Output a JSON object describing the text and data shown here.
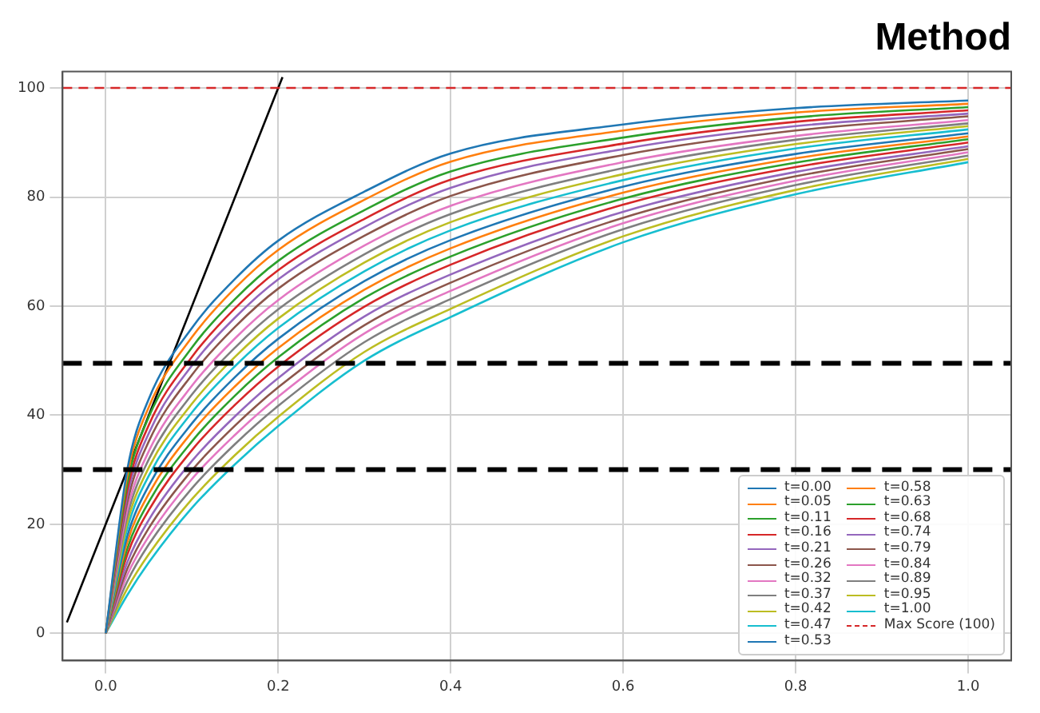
{
  "chart_data": {
    "type": "line",
    "title": "Method",
    "x": [
      0,
      0.025,
      0.05,
      0.1,
      0.15,
      0.2,
      0.3,
      0.4,
      0.6,
      0.8,
      1.0
    ],
    "xlim": [
      -0.05,
      1.05
    ],
    "xticks": [
      {
        "value": 0,
        "label": "0.0"
      },
      0.2,
      0.4,
      0.6,
      0.8,
      {
        "value": 1,
        "label": "1.0"
      }
    ],
    "ylim": [
      -5,
      103
    ],
    "yticks": [
      0,
      20,
      40,
      60,
      80,
      100
    ],
    "grid": true,
    "legend": "bottom right",
    "marker": "none",
    "line_style": "solid",
    "series": [
      {
        "name": "t=0.00",
        "color": "#1f77b4",
        "values": [
          0,
          30,
          43,
          56,
          65,
          72,
          81,
          88,
          93.3,
          96.3,
          97.7
        ]
      },
      {
        "name": "t=0.05",
        "color": "#ff7f0e",
        "values": [
          0,
          28.9,
          41.5,
          54.3,
          63.3,
          70.3,
          79.5,
          86.5,
          92.2,
          95.5,
          97.1
        ]
      },
      {
        "name": "t=0.11",
        "color": "#2ca02c",
        "values": [
          0,
          27.5,
          39.7,
          52.4,
          61.3,
          68.3,
          77.6,
          84.7,
          90.9,
          94.6,
          96.5
        ]
      },
      {
        "name": "t=0.16",
        "color": "#d62728",
        "values": [
          0,
          26.3,
          38.2,
          50.7,
          59.6,
          66.6,
          76.0,
          83.2,
          89.8,
          93.8,
          95.9
        ]
      },
      {
        "name": "t=0.21",
        "color": "#9467bd",
        "values": [
          0,
          25.2,
          36.7,
          49.1,
          57.9,
          64.9,
          74.5,
          81.7,
          88.8,
          93.0,
          95.3
        ]
      },
      {
        "name": "t=0.26",
        "color": "#8c564b",
        "values": [
          0,
          24.0,
          35.2,
          47.4,
          56.2,
          63.2,
          72.9,
          80.2,
          87.7,
          92.2,
          94.8
        ]
      },
      {
        "name": "t=0.32",
        "color": "#e377c2",
        "values": [
          0,
          22.6,
          33.4,
          45.4,
          54.1,
          61.1,
          71.1,
          78.4,
          86.4,
          91.2,
          94.1
        ]
      },
      {
        "name": "t=0.37",
        "color": "#7f7f7f",
        "values": [
          0,
          21.5,
          31.9,
          43.8,
          52.4,
          59.4,
          69.5,
          76.9,
          85.3,
          90.5,
          93.5
        ]
      },
      {
        "name": "t=0.42",
        "color": "#bcbd22",
        "values": [
          0,
          20.3,
          30.4,
          42.1,
          50.7,
          57.7,
          68.0,
          75.4,
          84.2,
          89.7,
          93.0
        ]
      },
      {
        "name": "t=0.47",
        "color": "#17becf",
        "values": [
          0,
          19.2,
          28.9,
          40.5,
          49.0,
          56.0,
          66.4,
          73.9,
          83.1,
          88.9,
          92.4
        ]
      },
      {
        "name": "t=0.53",
        "color": "#1f77b4",
        "values": [
          0,
          17.8,
          27.1,
          38.5,
          47.0,
          54.0,
          64.6,
          72.1,
          81.9,
          87.9,
          91.7
        ]
      },
      {
        "name": "t=0.58",
        "color": "#ff7f0e",
        "values": [
          0,
          16.7,
          25.6,
          36.9,
          45.3,
          52.3,
          63.0,
          70.6,
          80.8,
          87.1,
          91.1
        ]
      },
      {
        "name": "t=0.63",
        "color": "#2ca02c",
        "values": [
          0,
          15.5,
          24.1,
          35.2,
          43.6,
          50.6,
          61.5,
          69.1,
          79.7,
          86.3,
          90.6
        ]
      },
      {
        "name": "t=0.68",
        "color": "#d62728",
        "values": [
          0,
          14.4,
          22.6,
          33.6,
          41.9,
          48.9,
          59.9,
          67.6,
          78.6,
          85.5,
          90.0
        ]
      },
      {
        "name": "t=0.74",
        "color": "#9467bd",
        "values": [
          0,
          13.0,
          20.8,
          31.6,
          39.8,
          46.8,
          58.1,
          65.8,
          77.3,
          84.6,
          89.3
        ]
      },
      {
        "name": "t=0.79",
        "color": "#8c564b",
        "values": [
          0,
          11.8,
          19.3,
          29.9,
          38.1,
          45.1,
          56.5,
          64.3,
          76.2,
          83.8,
          88.8
        ]
      },
      {
        "name": "t=0.84",
        "color": "#e377c2",
        "values": [
          0,
          10.7,
          17.8,
          28.3,
          36.4,
          43.4,
          55.0,
          62.8,
          75.2,
          83.0,
          88.2
        ]
      },
      {
        "name": "t=0.89",
        "color": "#7f7f7f",
        "values": [
          0,
          9.5,
          16.3,
          26.6,
          34.7,
          41.7,
          53.4,
          61.3,
          74.1,
          82.2,
          87.6
        ]
      },
      {
        "name": "t=0.95",
        "color": "#bcbd22",
        "values": [
          0,
          8.2,
          14.5,
          24.6,
          32.7,
          39.7,
          51.6,
          59.5,
          72.8,
          81.3,
          87.0
        ]
      },
      {
        "name": "t=1.00",
        "color": "#17becf",
        "values": [
          0,
          7,
          13,
          23,
          31,
          38,
          50,
          58,
          71.7,
          80.5,
          86.4
        ]
      },
      {
        "name": "Max Score (100)",
        "color": "#d62728",
        "line_style": "dashed",
        "x": [
          -0.05,
          1.05
        ],
        "values": [
          100,
          100
        ]
      },
      {
        "color": "#000000",
        "x": [
          -0.045,
          0.205
        ],
        "values": [
          2,
          102
        ]
      }
    ],
    "ref_lines": [
      {
        "axis": "y",
        "value": 49.5,
        "color": "#000000",
        "line_style": "dashed"
      },
      {
        "axis": "y",
        "value": 30,
        "color": "#000000",
        "line_style": "dashed"
      }
    ]
  }
}
